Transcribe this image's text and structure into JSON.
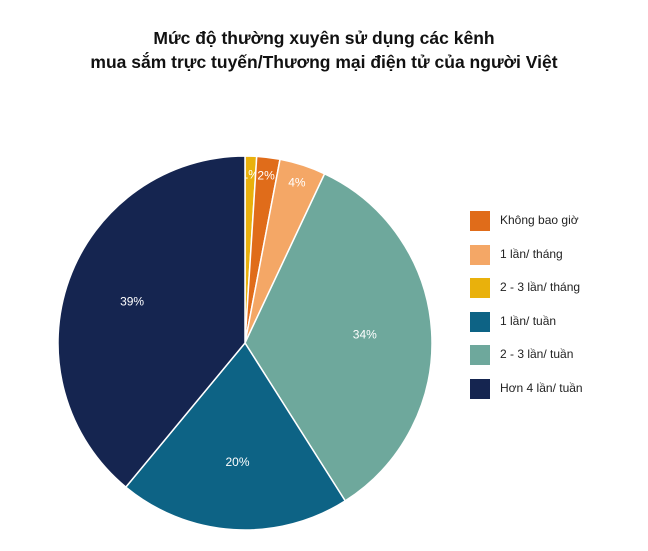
{
  "chart_data": {
    "type": "pie",
    "title_lines": [
      "Mức độ thường xuyên sử dụng các kênh",
      "mua sắm trực tuyến/Thương mại điện tử của người Việt"
    ],
    "slices": [
      {
        "label": "2 - 3 lần/ tháng",
        "value": 1,
        "display": "1%",
        "color": "#E9B10C"
      },
      {
        "label": "Không bao giờ",
        "value": 2,
        "display": "2%",
        "color": "#E06C1A"
      },
      {
        "label": "1 lần/ tháng",
        "value": 4,
        "display": "4%",
        "color": "#F4A766"
      },
      {
        "label": "2 - 3 lần/ tuần",
        "value": 34,
        "display": "34%",
        "color": "#6EA89C"
      },
      {
        "label": "1 lần/ tuần",
        "value": 20,
        "display": "20%",
        "color": "#0D6385"
      },
      {
        "label": "Hơn 4 lần/ tuần",
        "value": 39,
        "display": "39%",
        "color": "#152550"
      }
    ],
    "legend": [
      {
        "label": "Không bao giờ",
        "color": "#E06C1A"
      },
      {
        "label": "1 lần/ tháng",
        "color": "#F4A766"
      },
      {
        "label": "2 - 3 lần/ tháng",
        "color": "#E9B10C"
      },
      {
        "label": "1 lần/ tuần",
        "color": "#0D6385"
      },
      {
        "label": "2 - 3 lần/ tuần",
        "color": "#6EA89C"
      },
      {
        "label": "Hơn 4 lần/ tuần",
        "color": "#152550"
      }
    ],
    "legend_position": "right"
  }
}
